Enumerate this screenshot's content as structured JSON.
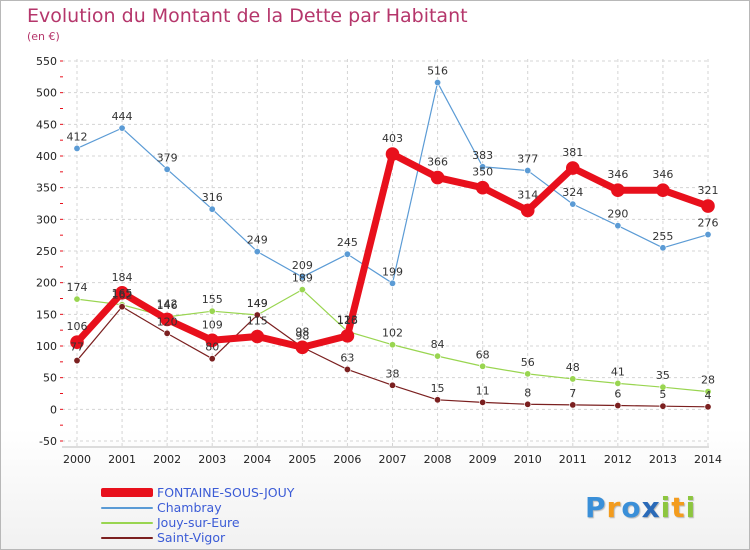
{
  "chart_data": {
    "type": "line",
    "title": "Evolution du Montant de la Dette par Habitant",
    "subtitle": "(en €)",
    "x": [
      "2000",
      "2001",
      "2002",
      "2003",
      "2004",
      "2005",
      "2006",
      "2007",
      "2008",
      "2009",
      "2010",
      "2011",
      "2012",
      "2013",
      "2014"
    ],
    "yticks": [
      "550",
      "500",
      "450",
      "400",
      "350",
      "300",
      "250",
      "200",
      "150",
      "100",
      "50",
      "0",
      "-50"
    ],
    "ylim": [
      -50,
      550
    ],
    "grid": true,
    "legend_position": "bottom-left",
    "series": [
      {
        "name": "FONTAINE-SOUS-JOUY",
        "color": "#e8101c",
        "values": [
          106,
          184,
          142,
          109,
          115,
          98,
          116,
          403,
          366,
          350,
          314,
          381,
          346,
          346,
          321
        ],
        "labels": [
          "106",
          "184",
          "142",
          "109",
          "115",
          "98",
          "116",
          "403",
          "366",
          "350",
          "314",
          "381",
          "346",
          "346",
          "321"
        ]
      },
      {
        "name": "Chambray",
        "color": "#5b9bd5",
        "values": [
          412,
          444,
          379,
          316,
          249,
          209,
          245,
          199,
          516,
          383,
          377,
          324,
          290,
          255,
          276
        ],
        "labels": [
          "412",
          "444",
          "379",
          "316",
          "249",
          "209",
          "245",
          "199",
          "516",
          "383",
          "377",
          "324",
          "290",
          "255",
          "276"
        ]
      },
      {
        "name": "Jouy-sur-Eure",
        "color": "#99d550",
        "values": [
          174,
          165,
          146,
          155,
          149,
          189,
          123,
          102,
          84,
          68,
          56,
          48,
          41,
          35,
          28
        ],
        "labels": [
          "174",
          "165",
          "146",
          "155",
          "149",
          "189",
          "123",
          "102",
          "84",
          "68",
          "56",
          "48",
          "41",
          "35",
          "28"
        ]
      },
      {
        "name": "Saint-Vigor",
        "color": "#7b2020",
        "values": [
          77,
          162,
          120,
          80,
          149,
          98,
          63,
          38,
          15,
          11,
          8,
          7,
          6,
          5,
          4
        ],
        "labels": [
          "77",
          "162",
          "120",
          "80",
          "149",
          "98",
          "63",
          "38",
          "15",
          "11",
          "8",
          "7",
          "6",
          "5",
          "4"
        ]
      }
    ]
  },
  "logo": {
    "letters": [
      "P",
      "r",
      "o",
      "x",
      "i",
      "t",
      "i"
    ],
    "colors": [
      "#3a8fd8",
      "#f39c1e",
      "#3a8fd8",
      "#2a6ab8",
      "#8dc63f",
      "#f39c1e",
      "#8dc63f"
    ]
  }
}
